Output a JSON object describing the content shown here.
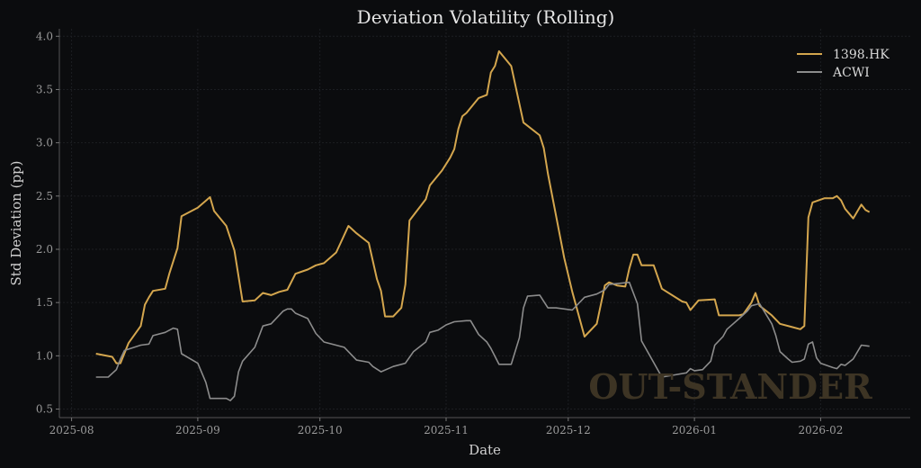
{
  "chart_data": {
    "type": "line",
    "title": "Deviation Volatility (Rolling)",
    "xlabel": "Date",
    "ylabel": "Std Deviation (pp)",
    "x_unit": "days since 2025-08-01",
    "xlim": [
      -3,
      206
    ],
    "ylim": [
      0.42,
      4.07
    ],
    "grid": true,
    "legend_position": "top-right",
    "watermark": "OUT-STANDER",
    "x_ticks": [
      {
        "label": "2025-08",
        "day": 0
      },
      {
        "label": "2025-09",
        "day": 31
      },
      {
        "label": "2025-10",
        "day": 61
      },
      {
        "label": "2025-11",
        "day": 92
      },
      {
        "label": "2025-12",
        "day": 122
      },
      {
        "label": "2026-01",
        "day": 153
      },
      {
        "label": "2026-02",
        "day": 184
      }
    ],
    "y_ticks": [
      0.5,
      1.0,
      1.5,
      2.0,
      2.5,
      3.0,
      3.5,
      4.0
    ],
    "y_tick_labels": [
      "0.5",
      "1.0",
      "1.5",
      "2.0",
      "2.5",
      "3.0",
      "3.5",
      "4.0"
    ],
    "series": [
      {
        "name": "1398.HK",
        "color": "#d4a64e",
        "x": [
          6,
          10,
          11,
          12,
          14,
          17,
          18,
          19,
          20,
          23,
          24,
          26,
          27,
          31,
          34,
          35,
          38,
          40,
          42,
          45,
          47,
          49,
          51,
          53,
          55,
          58,
          60,
          62,
          65,
          68,
          70,
          73,
          75,
          76,
          77,
          79,
          81,
          82,
          83,
          87,
          88,
          91,
          93,
          94,
          95,
          96,
          97,
          100,
          102,
          103,
          104,
          105,
          108,
          111,
          115,
          116,
          117,
          121,
          123,
          126,
          129,
          131,
          132,
          134,
          136,
          137,
          138,
          139,
          140,
          143,
          145,
          150,
          151,
          152,
          154,
          158,
          159,
          164,
          165,
          167,
          168,
          169,
          171,
          172,
          174,
          177,
          179,
          180,
          181,
          182,
          185,
          187,
          188,
          189,
          190,
          192,
          194,
          195,
          196
        ],
        "y": [
          1.02,
          0.99,
          0.93,
          0.93,
          1.12,
          1.28,
          1.48,
          1.55,
          1.61,
          1.63,
          1.77,
          2.01,
          2.31,
          2.39,
          2.49,
          2.36,
          2.22,
          1.99,
          1.51,
          1.52,
          1.59,
          1.57,
          1.6,
          1.62,
          1.77,
          1.81,
          1.85,
          1.87,
          1.97,
          2.22,
          2.15,
          2.06,
          1.72,
          1.61,
          1.37,
          1.37,
          1.45,
          1.67,
          2.27,
          2.47,
          2.6,
          2.74,
          2.86,
          2.94,
          3.13,
          3.25,
          3.28,
          3.42,
          3.45,
          3.66,
          3.72,
          3.86,
          3.72,
          3.19,
          3.07,
          2.95,
          2.71,
          1.92,
          1.6,
          1.18,
          1.3,
          1.66,
          1.69,
          1.66,
          1.65,
          1.82,
          1.95,
          1.95,
          1.85,
          1.85,
          1.63,
          1.51,
          1.5,
          1.43,
          1.52,
          1.53,
          1.38,
          1.38,
          1.39,
          1.5,
          1.59,
          1.47,
          1.41,
          1.38,
          1.3,
          1.27,
          1.25,
          1.28,
          2.3,
          2.44,
          2.48,
          2.48,
          2.5,
          2.46,
          2.38,
          2.29,
          2.42,
          2.37,
          2.35
        ]
      },
      {
        "name": "ACWI",
        "color": "#8c8c8c",
        "x": [
          6,
          9,
          11,
          12,
          13,
          17,
          19,
          20,
          23,
          25,
          26,
          27,
          31,
          33,
          34,
          38,
          39,
          40,
          41,
          42,
          45,
          47,
          49,
          52,
          53,
          54,
          55,
          58,
          60,
          62,
          67,
          70,
          73,
          74,
          76,
          79,
          82,
          84,
          87,
          88,
          90,
          92,
          94,
          97,
          98,
          100,
          102,
          103,
          105,
          108,
          110,
          111,
          112,
          115,
          117,
          119,
          123,
          126,
          129,
          131,
          132,
          137,
          139,
          140,
          145,
          151,
          152,
          153,
          155,
          157,
          158,
          160,
          161,
          164,
          166,
          167,
          169,
          172,
          173,
          174,
          176,
          177,
          179,
          180,
          181,
          182,
          183,
          184,
          187,
          188,
          189,
          190,
          192,
          194,
          196
        ],
        "y": [
          0.8,
          0.8,
          0.87,
          0.97,
          1.05,
          1.1,
          1.11,
          1.19,
          1.22,
          1.26,
          1.25,
          1.02,
          0.93,
          0.75,
          0.6,
          0.6,
          0.58,
          0.62,
          0.85,
          0.95,
          1.08,
          1.28,
          1.3,
          1.42,
          1.44,
          1.44,
          1.4,
          1.35,
          1.21,
          1.13,
          1.08,
          0.96,
          0.94,
          0.9,
          0.85,
          0.9,
          0.93,
          1.04,
          1.13,
          1.22,
          1.24,
          1.29,
          1.32,
          1.33,
          1.33,
          1.2,
          1.13,
          1.07,
          0.92,
          0.92,
          1.17,
          1.45,
          1.56,
          1.57,
          1.45,
          1.45,
          1.43,
          1.55,
          1.58,
          1.62,
          1.67,
          1.69,
          1.49,
          1.14,
          0.8,
          0.84,
          0.88,
          0.86,
          0.87,
          0.95,
          1.1,
          1.18,
          1.25,
          1.35,
          1.42,
          1.47,
          1.49,
          1.3,
          1.19,
          1.04,
          0.97,
          0.94,
          0.95,
          0.97,
          1.11,
          1.13,
          0.98,
          0.93,
          0.89,
          0.88,
          0.92,
          0.91,
          0.97,
          1.1,
          1.09
        ]
      }
    ]
  }
}
